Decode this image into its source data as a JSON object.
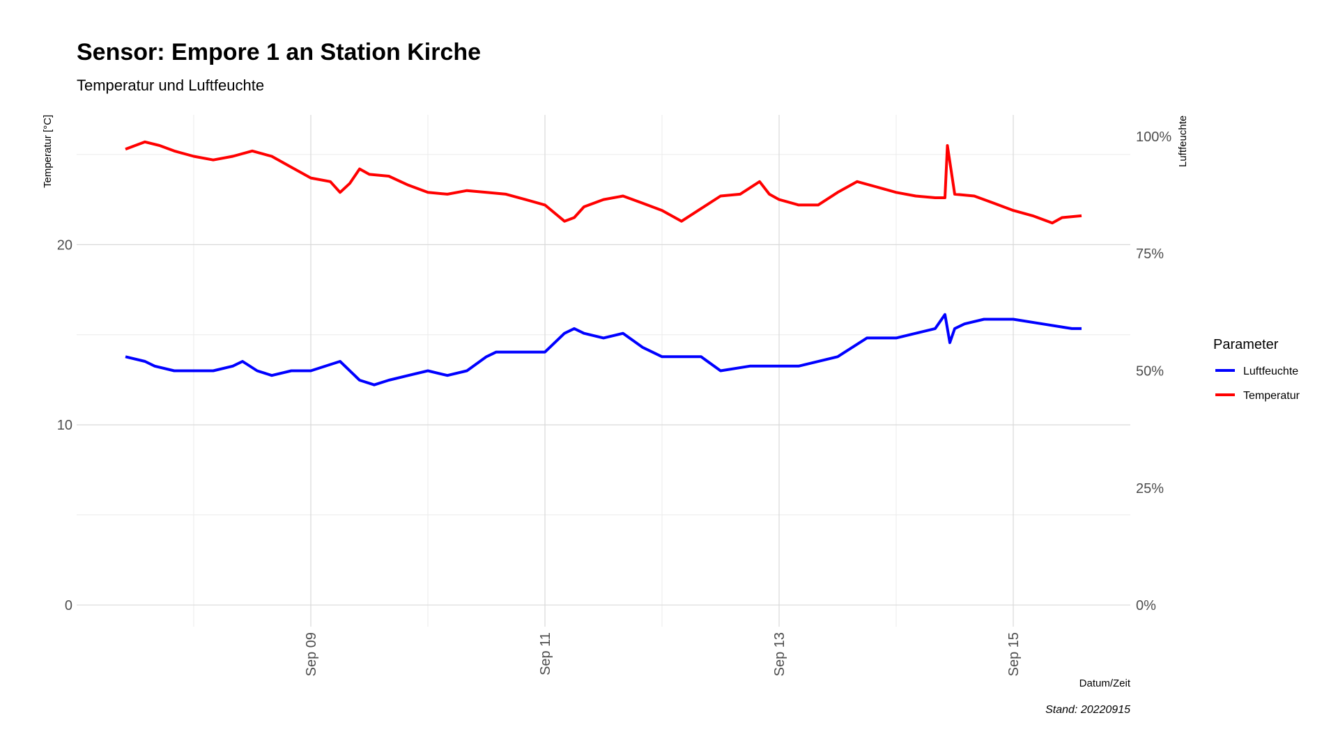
{
  "chart_data": {
    "type": "line",
    "title": "Sensor: Empore 1 an Station Kirche",
    "subtitle": "Temperatur und Luftfeuchte",
    "xlabel": "Datum/Zeit",
    "ylabel": "Temperatur [°C]",
    "y2label": "Luftfeuchte",
    "caption": "Stand: 20220915",
    "xlim": [
      "2022-09-07T00:00",
      "2022-09-16T00:00"
    ],
    "ylim": [
      -1.2,
      27.2
    ],
    "y2lim": [
      -0.046,
      1.046
    ],
    "x_ticks": [
      {
        "date": "2022-09-09T00:00",
        "label": "Sep 09"
      },
      {
        "date": "2022-09-11T00:00",
        "label": "Sep 11"
      },
      {
        "date": "2022-09-13T00:00",
        "label": "Sep 13"
      },
      {
        "date": "2022-09-15T00:00",
        "label": "Sep 15"
      }
    ],
    "x_minor_ticks": [
      "2022-09-08T00:00",
      "2022-09-10T00:00",
      "2022-09-12T00:00",
      "2022-09-14T00:00"
    ],
    "y_ticks": [
      {
        "value": 0,
        "label": "0"
      },
      {
        "value": 10,
        "label": "10"
      },
      {
        "value": 20,
        "label": "20"
      }
    ],
    "y_minor_ticks": [
      5,
      15,
      25
    ],
    "y2_ticks": [
      {
        "value": 0,
        "label": "0%"
      },
      {
        "value": 0.25,
        "label": "25%"
      },
      {
        "value": 0.5,
        "label": "50%"
      },
      {
        "value": 0.75,
        "label": "75%"
      },
      {
        "value": 1.0,
        "label": "100%"
      }
    ],
    "grid": true,
    "legend": {
      "title": "Parameter",
      "position": "right"
    },
    "series": [
      {
        "name": "Luftfeuchte",
        "axis": "right",
        "color": "#0000ff",
        "x": [
          "2022-09-07T10:00",
          "2022-09-07T14:00",
          "2022-09-07T16:00",
          "2022-09-07T20:00",
          "2022-09-08T00:00",
          "2022-09-08T04:00",
          "2022-09-08T08:00",
          "2022-09-08T10:00",
          "2022-09-08T13:00",
          "2022-09-08T16:00",
          "2022-09-08T20:00",
          "2022-09-09T00:00",
          "2022-09-09T06:00",
          "2022-09-09T10:00",
          "2022-09-09T13:00",
          "2022-09-09T16:00",
          "2022-09-09T20:00",
          "2022-09-10T00:00",
          "2022-09-10T04:00",
          "2022-09-10T08:00",
          "2022-09-10T12:00",
          "2022-09-10T14:00",
          "2022-09-10T17:00",
          "2022-09-10T20:00",
          "2022-09-11T00:00",
          "2022-09-11T04:00",
          "2022-09-11T06:00",
          "2022-09-11T08:00",
          "2022-09-11T12:00",
          "2022-09-11T16:00",
          "2022-09-11T20:00",
          "2022-09-12T00:00",
          "2022-09-12T04:00",
          "2022-09-12T08:00",
          "2022-09-12T12:00",
          "2022-09-12T18:00",
          "2022-09-12T23:00",
          "2022-09-13T04:00",
          "2022-09-13T12:00",
          "2022-09-13T18:00",
          "2022-09-13T22:00",
          "2022-09-14T00:00",
          "2022-09-14T04:00",
          "2022-09-14T08:00",
          "2022-09-14T10:00",
          "2022-09-14T11:00",
          "2022-09-14T12:00",
          "2022-09-14T14:00",
          "2022-09-14T18:00",
          "2022-09-15T00:00",
          "2022-09-15T06:00",
          "2022-09-15T12:00",
          "2022-09-15T14:00"
        ],
        "values": [
          0.53,
          0.52,
          0.51,
          0.5,
          0.5,
          0.5,
          0.51,
          0.52,
          0.5,
          0.49,
          0.5,
          0.5,
          0.52,
          0.48,
          0.47,
          0.48,
          0.49,
          0.5,
          0.49,
          0.5,
          0.53,
          0.54,
          0.54,
          0.54,
          0.54,
          0.58,
          0.59,
          0.58,
          0.57,
          0.58,
          0.55,
          0.53,
          0.53,
          0.53,
          0.5,
          0.51,
          0.51,
          0.51,
          0.53,
          0.57,
          0.57,
          0.57,
          0.58,
          0.59,
          0.62,
          0.56,
          0.59,
          0.6,
          0.61,
          0.61,
          0.6,
          0.59,
          0.59
        ]
      },
      {
        "name": "Temperatur",
        "axis": "left",
        "color": "#ff0000",
        "x": [
          "2022-09-07T10:00",
          "2022-09-07T14:00",
          "2022-09-07T17:00",
          "2022-09-07T20:00",
          "2022-09-08T00:00",
          "2022-09-08T04:00",
          "2022-09-08T08:00",
          "2022-09-08T12:00",
          "2022-09-08T16:00",
          "2022-09-08T20:00",
          "2022-09-09T00:00",
          "2022-09-09T04:00",
          "2022-09-09T06:00",
          "2022-09-09T08:00",
          "2022-09-09T10:00",
          "2022-09-09T12:00",
          "2022-09-09T16:00",
          "2022-09-09T20:00",
          "2022-09-10T00:00",
          "2022-09-10T04:00",
          "2022-09-10T08:00",
          "2022-09-10T12:00",
          "2022-09-10T16:00",
          "2022-09-10T20:00",
          "2022-09-11T00:00",
          "2022-09-11T04:00",
          "2022-09-11T06:00",
          "2022-09-11T08:00",
          "2022-09-11T12:00",
          "2022-09-11T16:00",
          "2022-09-11T20:00",
          "2022-09-12T00:00",
          "2022-09-12T04:00",
          "2022-09-12T08:00",
          "2022-09-12T12:00",
          "2022-09-12T16:00",
          "2022-09-12T20:00",
          "2022-09-12T22:00",
          "2022-09-13T00:00",
          "2022-09-13T04:00",
          "2022-09-13T08:00",
          "2022-09-13T12:00",
          "2022-09-13T16:00",
          "2022-09-13T20:00",
          "2022-09-14T00:00",
          "2022-09-14T04:00",
          "2022-09-14T08:00",
          "2022-09-14T10:00",
          "2022-09-14T10:30",
          "2022-09-14T12:00",
          "2022-09-14T16:00",
          "2022-09-14T20:00",
          "2022-09-15T00:00",
          "2022-09-15T04:00",
          "2022-09-15T08:00",
          "2022-09-15T10:00",
          "2022-09-15T14:00"
        ],
        "values": [
          25.3,
          25.7,
          25.5,
          25.2,
          24.9,
          24.7,
          24.9,
          25.2,
          24.9,
          24.3,
          23.7,
          23.5,
          22.9,
          23.4,
          24.2,
          23.9,
          23.8,
          23.3,
          22.9,
          22.8,
          23.0,
          22.9,
          22.8,
          22.5,
          22.2,
          21.3,
          21.5,
          22.1,
          22.5,
          22.7,
          22.3,
          21.9,
          21.3,
          22.0,
          22.7,
          22.8,
          23.5,
          22.8,
          22.5,
          22.2,
          22.2,
          22.9,
          23.5,
          23.2,
          22.9,
          22.7,
          22.6,
          22.6,
          25.5,
          22.8,
          22.7,
          22.3,
          21.9,
          21.6,
          21.2,
          21.5,
          21.6
        ]
      }
    ]
  }
}
